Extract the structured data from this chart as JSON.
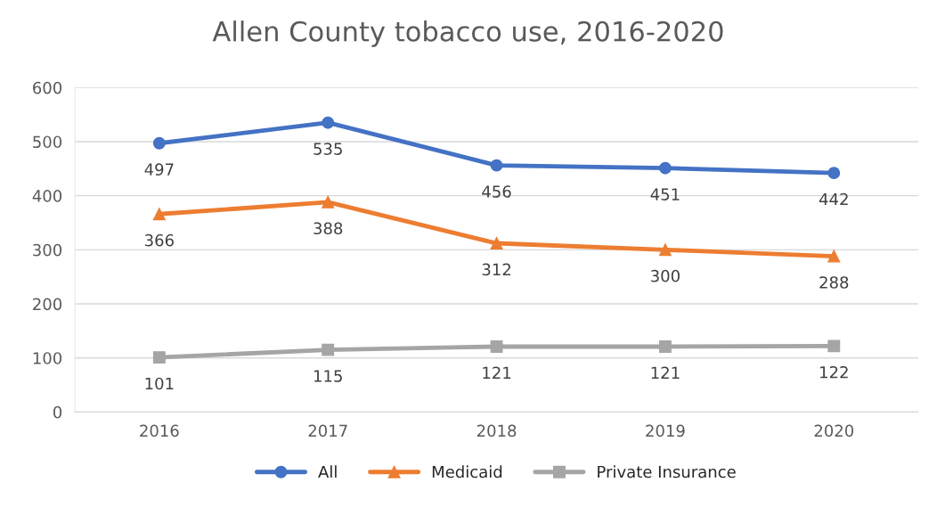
{
  "chart_data": {
    "type": "line",
    "title": "Allen County tobacco use, 2016-2020",
    "categories": [
      "2016",
      "2017",
      "2018",
      "2019",
      "2020"
    ],
    "series": [
      {
        "name": "All",
        "color": "#4472c4",
        "marker": "circle",
        "values": [
          497,
          535,
          456,
          451,
          442
        ]
      },
      {
        "name": "Medicaid",
        "color": "#ed7d31",
        "marker": "triangle",
        "values": [
          366,
          388,
          312,
          300,
          288
        ]
      },
      {
        "name": "Private Insurance",
        "color": "#a5a5a5",
        "marker": "square",
        "values": [
          101,
          115,
          121,
          121,
          122
        ]
      }
    ],
    "ylim": [
      0,
      600
    ],
    "yticks": [
      0,
      100,
      200,
      300,
      400,
      500,
      600
    ],
    "grid": "y",
    "legend": "bottom",
    "data_labels": true
  }
}
